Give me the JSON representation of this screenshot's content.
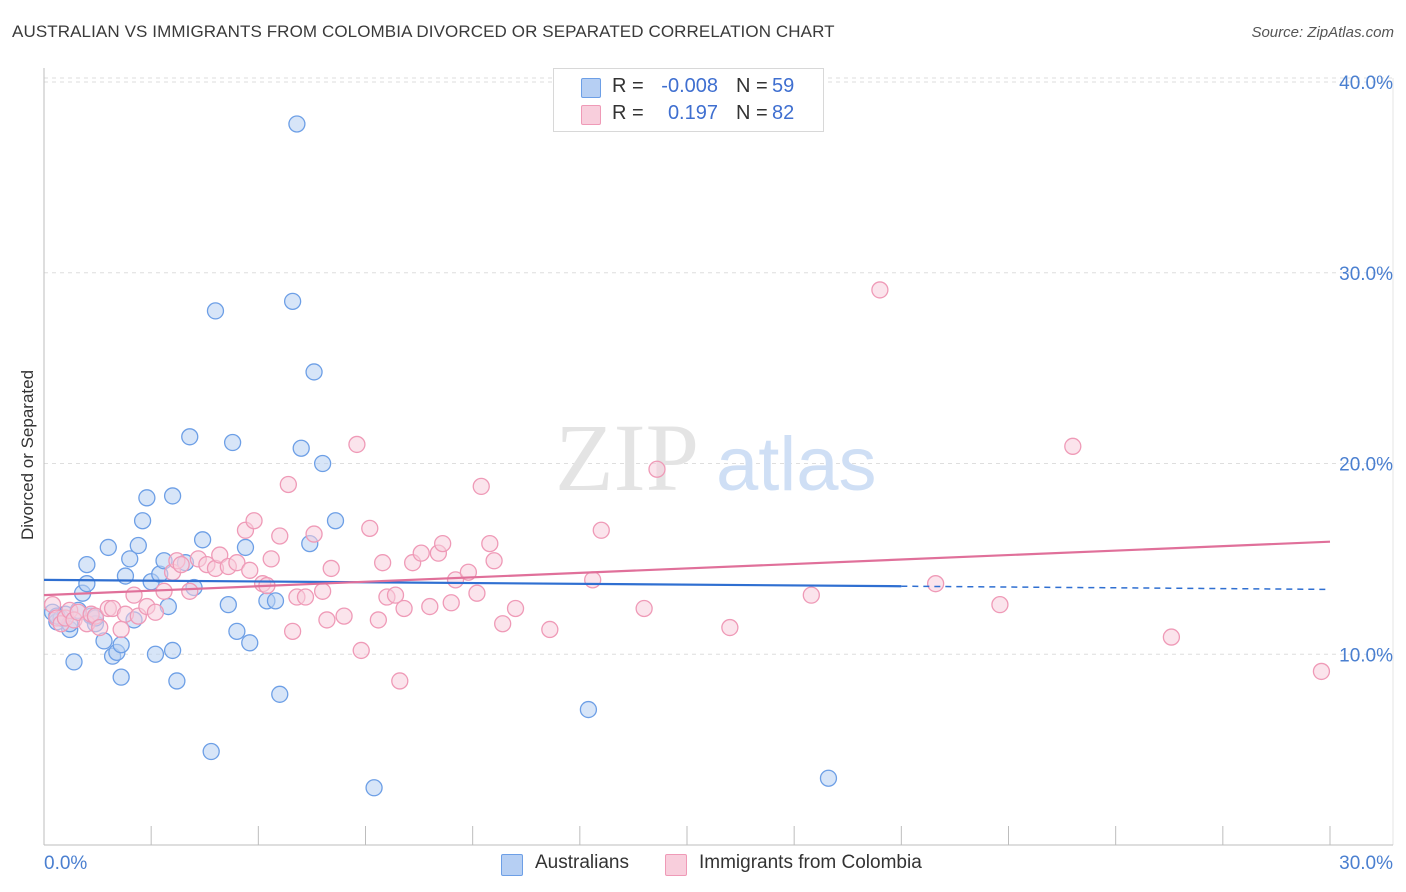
{
  "header": {
    "title": "AUSTRALIAN VS IMMIGRANTS FROM COLOMBIA DIVORCED OR SEPARATED CORRELATION CHART",
    "source": "Source: ZipAtlas.com"
  },
  "legend": {
    "r_label": "R =",
    "n_label": "N =",
    "series": [
      {
        "r": "-0.008",
        "n": "59"
      },
      {
        "r": "0.197",
        "n": "82"
      }
    ]
  },
  "watermark": {
    "zip": "ZIP",
    "atlas": "atlas"
  },
  "chart_data": {
    "type": "scatter",
    "title": "AUSTRALIAN VS IMMIGRANTS FROM COLOMBIA DIVORCED OR SEPARATED CORRELATION CHART",
    "xlabel": "",
    "ylabel": "Divorced or Separated",
    "xlim": [
      0,
      30
    ],
    "ylim": [
      0,
      40
    ],
    "x_tick_labels": [
      "0.0%",
      "30.0%"
    ],
    "y_ticks": [
      10,
      20,
      30,
      40
    ],
    "y_tick_labels": [
      "10.0%",
      "20.0%",
      "30.0%",
      "40.0%"
    ],
    "grid": true,
    "legend_position": "top-center",
    "series": [
      {
        "name": "Australians",
        "color": "#6d9fe6",
        "fill": "#b6cff3",
        "line_color": "#2f6fd1",
        "trend": {
          "x0": 0,
          "y0": 13.9,
          "x1": 30,
          "y1": 13.4,
          "solid_until": 20
        },
        "points": [
          [
            0.2,
            12.2
          ],
          [
            0.3,
            11.7
          ],
          [
            0.4,
            11.9
          ],
          [
            0.5,
            12.1
          ],
          [
            0.6,
            11.3
          ],
          [
            0.7,
            9.6
          ],
          [
            0.8,
            12.3
          ],
          [
            0.9,
            13.2
          ],
          [
            1.0,
            13.7
          ],
          [
            1.0,
            14.7
          ],
          [
            1.1,
            12.0
          ],
          [
            1.2,
            11.6
          ],
          [
            1.4,
            10.7
          ],
          [
            1.5,
            15.6
          ],
          [
            1.6,
            9.9
          ],
          [
            1.7,
            10.1
          ],
          [
            1.8,
            10.5
          ],
          [
            1.8,
            8.8
          ],
          [
            1.9,
            14.1
          ],
          [
            2.0,
            15.0
          ],
          [
            2.1,
            11.8
          ],
          [
            2.2,
            15.7
          ],
          [
            2.3,
            17.0
          ],
          [
            2.4,
            18.2
          ],
          [
            2.5,
            13.8
          ],
          [
            2.6,
            10.0
          ],
          [
            2.7,
            14.2
          ],
          [
            2.8,
            14.9
          ],
          [
            2.9,
            12.5
          ],
          [
            3.0,
            18.3
          ],
          [
            3.0,
            10.2
          ],
          [
            3.1,
            8.6
          ],
          [
            3.3,
            14.8
          ],
          [
            3.4,
            21.4
          ],
          [
            3.5,
            13.5
          ],
          [
            3.7,
            16.0
          ],
          [
            3.9,
            4.9
          ],
          [
            4.0,
            28.0
          ],
          [
            4.3,
            12.6
          ],
          [
            4.4,
            21.1
          ],
          [
            4.5,
            11.2
          ],
          [
            4.7,
            15.6
          ],
          [
            4.8,
            10.6
          ],
          [
            5.2,
            12.8
          ],
          [
            5.4,
            12.8
          ],
          [
            5.5,
            7.9
          ],
          [
            5.8,
            28.5
          ],
          [
            5.9,
            37.8
          ],
          [
            6.0,
            20.8
          ],
          [
            6.2,
            15.8
          ],
          [
            6.3,
            24.8
          ],
          [
            6.5,
            20.0
          ],
          [
            6.8,
            17.0
          ],
          [
            7.7,
            3.0
          ],
          [
            12.7,
            7.1
          ],
          [
            18.3,
            3.5
          ],
          [
            0.3,
            12.0
          ],
          [
            0.6,
            11.6
          ],
          [
            1.2,
            11.9
          ]
        ]
      },
      {
        "name": "Immigrants from Colombia",
        "color": "#ef9ab7",
        "fill": "#f8cedc",
        "line_color": "#e0709a",
        "trend": {
          "x0": 0,
          "y0": 13.1,
          "x1": 30,
          "y1": 15.9,
          "solid_until": 30
        },
        "points": [
          [
            0.2,
            12.6
          ],
          [
            0.3,
            11.9
          ],
          [
            0.4,
            11.6
          ],
          [
            0.5,
            11.9
          ],
          [
            0.6,
            12.3
          ],
          [
            0.7,
            11.8
          ],
          [
            0.8,
            12.2
          ],
          [
            1.0,
            11.6
          ],
          [
            1.1,
            12.1
          ],
          [
            1.2,
            12.0
          ],
          [
            1.3,
            11.4
          ],
          [
            1.5,
            12.4
          ],
          [
            1.6,
            12.4
          ],
          [
            1.8,
            11.3
          ],
          [
            1.9,
            12.1
          ],
          [
            2.1,
            13.1
          ],
          [
            2.2,
            12.0
          ],
          [
            2.4,
            12.5
          ],
          [
            2.6,
            12.2
          ],
          [
            2.8,
            13.3
          ],
          [
            3.0,
            14.3
          ],
          [
            3.1,
            14.9
          ],
          [
            3.2,
            14.7
          ],
          [
            3.4,
            13.3
          ],
          [
            3.6,
            15.0
          ],
          [
            3.8,
            14.7
          ],
          [
            4.0,
            14.5
          ],
          [
            4.1,
            15.2
          ],
          [
            4.3,
            14.6
          ],
          [
            4.5,
            14.8
          ],
          [
            4.7,
            16.5
          ],
          [
            4.8,
            14.4
          ],
          [
            4.9,
            17.0
          ],
          [
            5.1,
            13.7
          ],
          [
            5.2,
            13.6
          ],
          [
            5.3,
            15.0
          ],
          [
            5.5,
            16.2
          ],
          [
            5.7,
            18.9
          ],
          [
            5.8,
            11.2
          ],
          [
            5.9,
            13.0
          ],
          [
            6.1,
            13.0
          ],
          [
            6.3,
            16.3
          ],
          [
            6.5,
            13.3
          ],
          [
            6.6,
            11.8
          ],
          [
            6.7,
            14.5
          ],
          [
            7.0,
            12.0
          ],
          [
            7.3,
            21.0
          ],
          [
            7.4,
            10.2
          ],
          [
            7.6,
            16.6
          ],
          [
            7.8,
            11.8
          ],
          [
            7.9,
            14.8
          ],
          [
            8.0,
            13.0
          ],
          [
            8.2,
            13.1
          ],
          [
            8.3,
            8.6
          ],
          [
            8.4,
            12.4
          ],
          [
            8.6,
            14.8
          ],
          [
            8.8,
            15.3
          ],
          [
            9.0,
            12.5
          ],
          [
            9.2,
            15.3
          ],
          [
            9.3,
            15.8
          ],
          [
            9.5,
            12.7
          ],
          [
            9.6,
            13.9
          ],
          [
            9.9,
            14.3
          ],
          [
            10.1,
            13.2
          ],
          [
            10.2,
            18.8
          ],
          [
            10.4,
            15.8
          ],
          [
            10.5,
            14.9
          ],
          [
            10.7,
            11.6
          ],
          [
            11.0,
            12.4
          ],
          [
            11.8,
            11.3
          ],
          [
            12.8,
            13.9
          ],
          [
            13.0,
            16.5
          ],
          [
            14.0,
            12.4
          ],
          [
            14.3,
            19.7
          ],
          [
            16.0,
            11.4
          ],
          [
            17.9,
            13.1
          ],
          [
            19.5,
            29.1
          ],
          [
            20.8,
            13.7
          ],
          [
            22.3,
            12.6
          ],
          [
            24.0,
            20.9
          ],
          [
            26.3,
            10.9
          ],
          [
            29.8,
            9.1
          ]
        ]
      }
    ]
  },
  "bottom_legend": [
    "Australians",
    "Immigrants from Colombia"
  ]
}
